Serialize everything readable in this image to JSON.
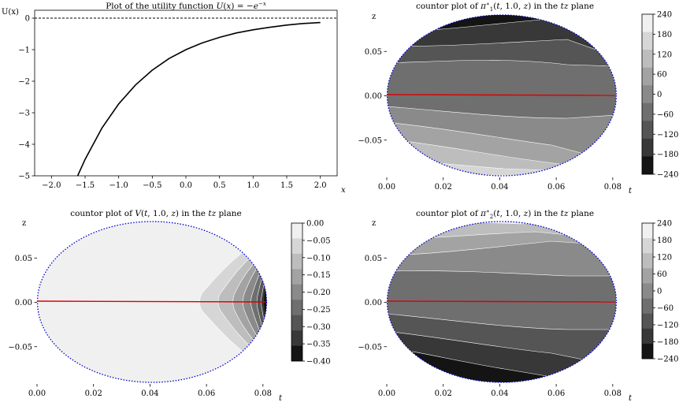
{
  "chart_data": [
    {
      "type": "line",
      "title": "Plot of the utility function U(x) = −e^{−x}",
      "xlabel": "x",
      "ylabel": "U(x)",
      "xlim": [
        -2.25,
        2.25
      ],
      "ylim": [
        -5,
        0.25
      ],
      "xticks": [
        "−2.0",
        "−1.5",
        "−1.0",
        "−0.5",
        "0.0",
        "0.5",
        "1.0",
        "1.5",
        "2.0"
      ],
      "yticks": [
        "0",
        "−1",
        "−2",
        "−3",
        "−4",
        "−5"
      ],
      "series": [
        {
          "style": "solid",
          "color": "#000000",
          "x": [
            -1.61,
            -1.5,
            -1.25,
            -1.0,
            -0.75,
            -0.5,
            -0.25,
            0.0,
            0.25,
            0.5,
            0.75,
            1.0,
            1.25,
            1.5,
            1.75,
            2.0
          ],
          "y": [
            -5.0,
            -4.48,
            -3.49,
            -2.72,
            -2.12,
            -1.65,
            -1.28,
            -1.0,
            -0.78,
            -0.61,
            -0.47,
            -0.37,
            -0.29,
            -0.22,
            -0.17,
            -0.14
          ]
        },
        {
          "style": "dashed",
          "color": "#000000",
          "x": [
            -2.25,
            2.25
          ],
          "y": [
            0,
            0
          ]
        }
      ],
      "grid": false
    },
    {
      "type": "contour",
      "title": "countor plot of π₁*(t, 1.0, z) in the tz plane",
      "xlabel": "t",
      "ylabel": "z",
      "xlim": [
        0.0,
        0.082
      ],
      "ylim": [
        -0.092,
        0.092
      ],
      "xticks": [
        "0.00",
        "0.02",
        "0.04",
        "0.06",
        "0.08"
      ],
      "yticks": [
        "0.05",
        "0.00",
        "−0.05"
      ],
      "colorbar": {
        "levels": [
          -240,
          -180,
          -120,
          -60,
          0,
          60,
          120,
          180,
          240
        ],
        "labels": [
          "240",
          "180",
          "120",
          "60",
          "0",
          "−60",
          "−120",
          "−180",
          "−240"
        ]
      },
      "boundary_color": "#0000cc",
      "center_line_color": "#dd0000",
      "orientation": "high-at-bottom"
    },
    {
      "type": "contour",
      "title": "countor plot of V(t, 1.0, z) in the tz plane",
      "xlabel": "t",
      "ylabel": "z",
      "xlim": [
        0.0,
        0.082
      ],
      "ylim": [
        -0.092,
        0.092
      ],
      "xticks": [
        "0.00",
        "0.02",
        "0.04",
        "0.06",
        "0.08"
      ],
      "yticks": [
        "0.05",
        "0.00",
        "−0.05"
      ],
      "colorbar": {
        "levels": [
          -0.4,
          -0.35,
          -0.3,
          -0.25,
          -0.2,
          -0.15,
          -0.1,
          -0.05,
          0.0
        ],
        "labels": [
          "0.00",
          "−0.05",
          "−0.10",
          "−0.15",
          "−0.20",
          "−0.25",
          "−0.30",
          "−0.35",
          "−0.40"
        ]
      },
      "boundary_color": "#0000cc",
      "center_line_color": "#dd0000"
    },
    {
      "type": "contour",
      "title": "countor plot of π₂*(t, 1.0, z) in the tz plane",
      "xlabel": "t",
      "ylabel": "z",
      "xlim": [
        0.0,
        0.082
      ],
      "ylim": [
        -0.092,
        0.092
      ],
      "xticks": [
        "0.00",
        "0.02",
        "0.04",
        "0.06",
        "0.08"
      ],
      "yticks": [
        "0.05",
        "0.00",
        "−0.05"
      ],
      "colorbar": {
        "levels": [
          -240,
          -180,
          -120,
          -60,
          0,
          60,
          120,
          180,
          240
        ],
        "labels": [
          "240",
          "180",
          "120",
          "60",
          "0",
          "−60",
          "−120",
          "−180",
          "−240"
        ]
      },
      "boundary_color": "#0000cc",
      "center_line_color": "#dd0000",
      "orientation": "high-at-top"
    }
  ],
  "colorbar_grays": [
    "#f0f0f0",
    "#d6d6d6",
    "#bdbdbd",
    "#a3a3a3",
    "#8a8a8a",
    "#6f6f6f",
    "#555555",
    "#383838",
    "#141414"
  ]
}
